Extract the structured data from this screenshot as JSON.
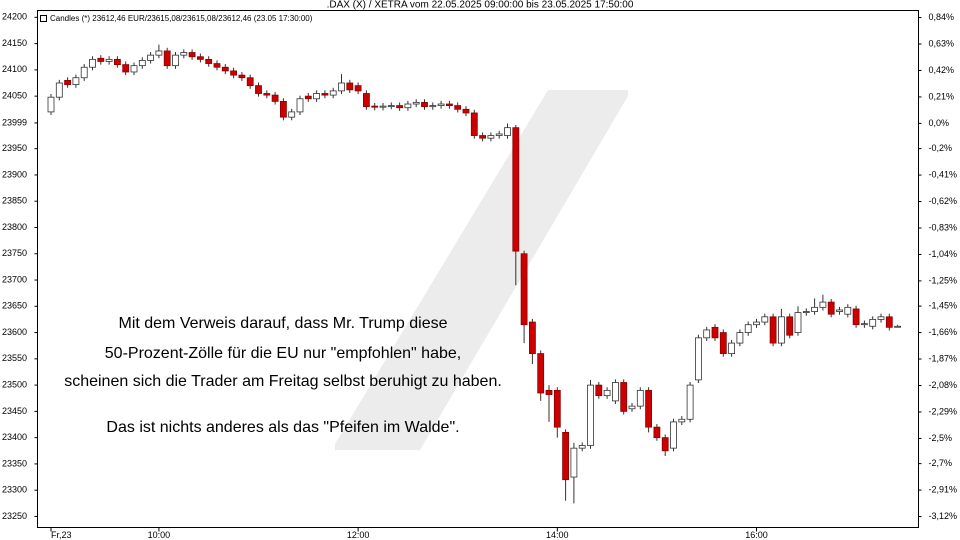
{
  "chart_data": {
    "type": "candlestick",
    "title": ".DAX (X) / XETRA vom 22.05.2025 09:00:00 bis 23.05.2025 17:50:00",
    "legend_text": "Candles (*) 23612,46 EUR/23615,08/23615,08/23612,46 (23.05 17:30:00)",
    "annotations": [
      "Mit dem Verweis darauf, dass Mr. Trump diese",
      "50-Prozent-Zölle für die EU nur \"empfohlen\" habe,",
      "scheinen sich die Trader am Freitag selbst beruhigt zu haben.",
      "Das ist nichts anderes als das \"Pfeifen im Walde\"."
    ],
    "up_color": "#ffffff",
    "down_color": "#cc0000",
    "categories": [
      "Fr,23",
      null,
      null,
      null,
      null,
      null,
      null,
      null,
      null,
      null,
      null,
      null,
      null,
      "10:00",
      null,
      null,
      null,
      null,
      null,
      null,
      null,
      null,
      null,
      null,
      null,
      null,
      null,
      null,
      null,
      null,
      null,
      null,
      null,
      null,
      null,
      null,
      null,
      "12:00",
      null,
      null,
      null,
      null,
      null,
      null,
      null,
      null,
      null,
      null,
      null,
      null,
      null,
      null,
      null,
      null,
      null,
      null,
      null,
      null,
      null,
      null,
      null,
      "14:00",
      null,
      null,
      null,
      null,
      null,
      null,
      null,
      null,
      null,
      null,
      null,
      null,
      null,
      null,
      null,
      null,
      null,
      null,
      null,
      null,
      null,
      null,
      null,
      "16:00",
      null,
      null,
      null,
      null,
      null,
      null,
      null,
      null,
      null,
      null,
      null,
      null,
      null,
      null,
      null,
      null,
      null
    ],
    "open": [
      24020,
      24048,
      24080,
      24072,
      24085,
      24105,
      24122,
      24116,
      24120,
      24110,
      24096,
      24108,
      24118,
      24128,
      24136,
      24108,
      24128,
      24133,
      24125,
      24120,
      24112,
      24105,
      24098,
      24090,
      24085,
      24070,
      24055,
      24052,
      24040,
      24010,
      24020,
      24050,
      24045,
      24055,
      24052,
      24060,
      24075,
      24070,
      24055,
      24031,
      24029,
      24031,
      24032,
      24028,
      24035,
      24038,
      24030,
      24032,
      24035,
      24032,
      24025,
      24018,
      23975,
      23970,
      23975,
      23975,
      23990,
      23750,
      23620,
      23560,
      23490,
      23490,
      23410,
      23325,
      23380,
      23385,
      23500,
      23480,
      23470,
      23505,
      23455,
      23460,
      23490,
      23420,
      23400,
      23380,
      23430,
      23435,
      23510,
      23590,
      23610,
      23600,
      23560,
      23580,
      23600,
      23615,
      23620,
      23630,
      23580,
      23630,
      23600,
      23638,
      23640,
      23648,
      23658,
      23640,
      23635,
      23645,
      23615,
      23612,
      23625,
      23630,
      23612
    ],
    "high": [
      24054,
      24081,
      24086,
      24091,
      24111,
      24126,
      24128,
      24126,
      24126,
      24116,
      24114,
      24124,
      24134,
      24148,
      24142,
      24134,
      24139,
      24139,
      24131,
      24126,
      24118,
      24111,
      24104,
      24096,
      24091,
      24076,
      24061,
      24058,
      24046,
      24026,
      24051,
      24056,
      24061,
      24061,
      24066,
      24092,
      24081,
      24076,
      24061,
      24037,
      24037,
      24038,
      24038,
      24041,
      24044,
      24044,
      24038,
      24041,
      24041,
      24038,
      24031,
      24024,
      23981,
      23981,
      23984,
      23998,
      23995,
      23756,
      23626,
      23566,
      23500,
      23496,
      23416,
      23390,
      23391,
      23510,
      23506,
      23496,
      23511,
      23511,
      23466,
      23496,
      23496,
      23426,
      23406,
      23436,
      23441,
      23506,
      23596,
      23611,
      23616,
      23606,
      23586,
      23606,
      23621,
      23626,
      23636,
      23636,
      23645,
      23636,
      23650,
      23646,
      23665,
      23672,
      23664,
      23649,
      23654,
      23651,
      23623,
      23631,
      23636,
      23636,
      23615
    ],
    "low": [
      24014,
      24042,
      24066,
      24066,
      24079,
      24099,
      24110,
      24110,
      24104,
      24090,
      24090,
      24102,
      24112,
      24122,
      24102,
      24102,
      24122,
      24119,
      24114,
      24106,
      24099,
      24092,
      24084,
      24079,
      24064,
      24049,
      24046,
      24034,
      24004,
      24004,
      24014,
      24039,
      24039,
      24046,
      24046,
      24054,
      24056,
      24054,
      24024,
      24023,
      24023,
      24025,
      24022,
      24022,
      24029,
      24024,
      24024,
      24026,
      24026,
      24019,
      24012,
      23969,
      23964,
      23964,
      23969,
      23969,
      23690,
      23580,
      23540,
      23470,
      23430,
      23400,
      23280,
      23275,
      23374,
      23379,
      23474,
      23474,
      23464,
      23444,
      23449,
      23454,
      23410,
      23394,
      23365,
      23374,
      23424,
      23429,
      23504,
      23584,
      23584,
      23554,
      23554,
      23574,
      23594,
      23609,
      23614,
      23574,
      23574,
      23589,
      23594,
      23632,
      23634,
      23642,
      23629,
      23634,
      23629,
      23609,
      23609,
      23606,
      23619,
      23604,
      23610
    ],
    "close": [
      24048,
      24075,
      24072,
      24085,
      24105,
      24120,
      24116,
      24120,
      24110,
      24096,
      24108,
      24118,
      24128,
      24136,
      24108,
      24128,
      24133,
      24125,
      24120,
      24112,
      24105,
      24098,
      24090,
      24085,
      24070,
      24055,
      24052,
      24040,
      24010,
      24020,
      24045,
      24045,
      24055,
      24052,
      24060,
      24075,
      24062,
      24060,
      24030,
      24029,
      24031,
      24032,
      24028,
      24035,
      24038,
      24030,
      24032,
      24035,
      24032,
      24025,
      24018,
      23975,
      23970,
      23975,
      23978,
      23990,
      23755,
      23615,
      23560,
      23485,
      23482,
      23420,
      23320,
      23380,
      23385,
      23500,
      23480,
      23490,
      23505,
      23450,
      23460,
      23490,
      23420,
      23400,
      23375,
      23430,
      23435,
      23500,
      23590,
      23605,
      23590,
      23560,
      23580,
      23600,
      23615,
      23620,
      23630,
      23580,
      23630,
      23595,
      23638,
      23640,
      23648,
      23658,
      23635,
      23643,
      23648,
      23615,
      23617,
      23625,
      23630,
      23610,
      23612
    ],
    "ylim": [
      23229,
      24213
    ],
    "yticks": [
      24200,
      24150,
      24100,
      24050,
      23999,
      23950,
      23900,
      23850,
      23800,
      23750,
      23700,
      23650,
      23600,
      23550,
      23500,
      23450,
      23400,
      23350,
      23300,
      23250
    ],
    "y2lim": [
      -3.207,
      0.896
    ],
    "y2ticks": [
      {
        "value": 0.84,
        "label": "0,84%"
      },
      {
        "value": 0.63,
        "label": "0,63%"
      },
      {
        "value": 0.42,
        "label": "0,42%"
      },
      {
        "value": 0.21,
        "label": "0,21%"
      },
      {
        "value": 0,
        "label": "0,0%"
      },
      {
        "value": -0.2,
        "label": "-0,2%"
      },
      {
        "value": -0.41,
        "label": "-0,41%"
      },
      {
        "value": -0.62,
        "label": "-0,62%"
      },
      {
        "value": -0.83,
        "label": "-0,83%"
      },
      {
        "value": -1.04,
        "label": "-1,04%"
      },
      {
        "value": -1.25,
        "label": "-1,25%"
      },
      {
        "value": -1.45,
        "label": "-1,45%"
      },
      {
        "value": -1.66,
        "label": "-1,66%"
      },
      {
        "value": -1.87,
        "label": "-1,87%"
      },
      {
        "value": -2.08,
        "label": "-2,08%"
      },
      {
        "value": -2.29,
        "label": "-2,29%"
      },
      {
        "value": -2.5,
        "label": "-2,5%"
      },
      {
        "value": -2.7,
        "label": "-2,7%"
      },
      {
        "value": -2.91,
        "label": "-2,91%"
      },
      {
        "value": -3.12,
        "label": "-3,12%"
      }
    ],
    "grid": false
  }
}
